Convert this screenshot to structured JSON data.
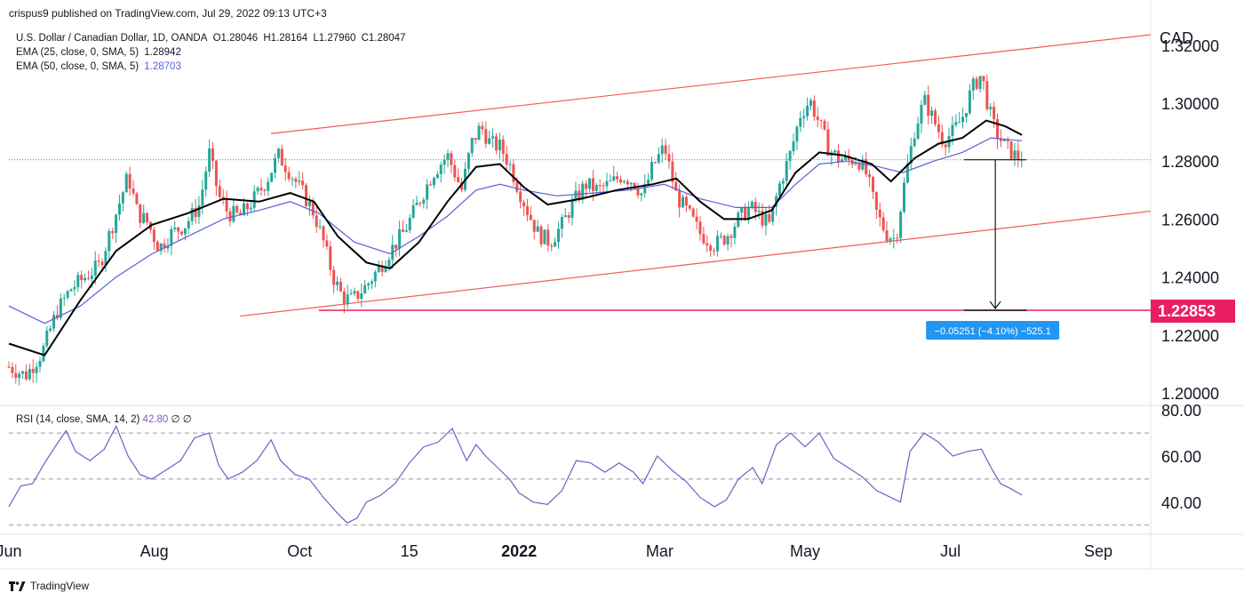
{
  "header": {
    "published": "crispus9 published on TradingView.com, Jul 29, 2022 09:13 UTC+3"
  },
  "legend": {
    "symbol": "U.S. Dollar / Canadian Dollar, 1D, OANDA",
    "open": "O1.28046",
    "high": "H1.28164",
    "low": "L1.27960",
    "close": "C1.28047",
    "ema25_label": "EMA (25, close, 0, SMA, 5)",
    "ema25_value": "1.28942",
    "ema50_label": "EMA (50, close, 0, SMA, 5)",
    "ema50_value": "1.28703"
  },
  "rsi_legend": {
    "label": "RSI (14, close, SMA, 14, 2)",
    "value": "42.80",
    "extra": "∅ ∅"
  },
  "footer": {
    "brand": "TradingView"
  },
  "measure": {
    "text": "−0.05251 (−4.10%) −525.1"
  },
  "chart_data": {
    "type": "candlestick",
    "currency": "CAD",
    "price_ticks": [
      "1.32000",
      "1.30000",
      "1.28000",
      "1.26000",
      "1.24000",
      "1.22000",
      "1.20000"
    ],
    "price_tick_values": [
      1.32,
      1.3,
      1.28,
      1.26,
      1.24,
      1.22,
      1.2
    ],
    "ylim": [
      1.196,
      1.327
    ],
    "current_price": 1.28047,
    "target_level": {
      "value": 1.22853,
      "label": "1.22853"
    },
    "rsi_ticks": [
      "80.00",
      "60.00",
      "40.00"
    ],
    "rsi_tick_values": [
      80,
      60,
      40
    ],
    "rsi_ylim": [
      26,
      82
    ],
    "rsi_levels": [
      70,
      50,
      30
    ],
    "x_labels": [
      "Jun",
      "Aug",
      "Oct",
      "15",
      "2022",
      "Mar",
      "May",
      "Jul",
      "Sep"
    ],
    "x_bold": [
      "2022"
    ],
    "x_label_days": [
      0,
      61,
      122,
      168,
      214,
      273,
      334,
      395,
      457
    ],
    "day_range": [
      0,
      479
    ],
    "channel_upper": [
      [
        110,
        1.2895
      ],
      [
        479,
        1.3236
      ]
    ],
    "channel_lower": [
      [
        97,
        1.2265
      ],
      [
        479,
        1.2627
      ]
    ],
    "price_path": [
      [
        0,
        1.209
      ],
      [
        7,
        1.206
      ],
      [
        14,
        1.214
      ],
      [
        20,
        1.228
      ],
      [
        26,
        1.236
      ],
      [
        32,
        1.24
      ],
      [
        38,
        1.244
      ],
      [
        45,
        1.262
      ],
      [
        50,
        1.275
      ],
      [
        54,
        1.262
      ],
      [
        58,
        1.259
      ],
      [
        63,
        1.25
      ],
      [
        68,
        1.255
      ],
      [
        74,
        1.258
      ],
      [
        80,
        1.265
      ],
      [
        84,
        1.283
      ],
      [
        88,
        1.268
      ],
      [
        92,
        1.262
      ],
      [
        97,
        1.261
      ],
      [
        102,
        1.266
      ],
      [
        108,
        1.273
      ],
      [
        113,
        1.282
      ],
      [
        118,
        1.276
      ],
      [
        124,
        1.268
      ],
      [
        128,
        1.262
      ],
      [
        132,
        1.252
      ],
      [
        136,
        1.24
      ],
      [
        140,
        1.233
      ],
      [
        144,
        1.232
      ],
      [
        150,
        1.237
      ],
      [
        156,
        1.244
      ],
      [
        160,
        1.249
      ],
      [
        166,
        1.256
      ],
      [
        172,
        1.266
      ],
      [
        178,
        1.276
      ],
      [
        184,
        1.282
      ],
      [
        190,
        1.27
      ],
      [
        194,
        1.286
      ],
      [
        198,
        1.292
      ],
      [
        202,
        1.286
      ],
      [
        206,
        1.285
      ],
      [
        210,
        1.279
      ],
      [
        214,
        1.27
      ],
      [
        218,
        1.262
      ],
      [
        222,
        1.255
      ],
      [
        227,
        1.252
      ],
      [
        232,
        1.258
      ],
      [
        237,
        1.266
      ],
      [
        242,
        1.272
      ],
      [
        247,
        1.27
      ],
      [
        252,
        1.272
      ],
      [
        257,
        1.275
      ],
      [
        262,
        1.273
      ],
      [
        266,
        1.268
      ],
      [
        270,
        1.278
      ],
      [
        275,
        1.285
      ],
      [
        280,
        1.268
      ],
      [
        285,
        1.262
      ],
      [
        290,
        1.255
      ],
      [
        296,
        1.251
      ],
      [
        301,
        1.254
      ],
      [
        306,
        1.26
      ],
      [
        311,
        1.264
      ],
      [
        315,
        1.261
      ],
      [
        319,
        1.258
      ],
      [
        323,
        1.271
      ],
      [
        328,
        1.283
      ],
      [
        332,
        1.296
      ],
      [
        336,
        1.301
      ],
      [
        340,
        1.293
      ],
      [
        344,
        1.284
      ],
      [
        348,
        1.281
      ],
      [
        352,
        1.28
      ],
      [
        356,
        1.281
      ],
      [
        360,
        1.275
      ],
      [
        364,
        1.262
      ],
      [
        368,
        1.255
      ],
      [
        372,
        1.253
      ],
      [
        376,
        1.274
      ],
      [
        380,
        1.291
      ],
      [
        384,
        1.301
      ],
      [
        388,
        1.294
      ],
      [
        392,
        1.287
      ],
      [
        396,
        1.29
      ],
      [
        400,
        1.295
      ],
      [
        404,
        1.305
      ],
      [
        408,
        1.31
      ],
      [
        411,
        1.298
      ],
      [
        414,
        1.29
      ],
      [
        418,
        1.285
      ],
      [
        422,
        1.282
      ],
      [
        425,
        1.2805
      ]
    ],
    "ema25": [
      [
        0,
        1.217
      ],
      [
        15,
        1.213
      ],
      [
        30,
        1.232
      ],
      [
        45,
        1.249
      ],
      [
        60,
        1.258
      ],
      [
        75,
        1.262
      ],
      [
        90,
        1.267
      ],
      [
        105,
        1.266
      ],
      [
        118,
        1.269
      ],
      [
        128,
        1.266
      ],
      [
        138,
        1.254
      ],
      [
        150,
        1.245
      ],
      [
        160,
        1.243
      ],
      [
        172,
        1.252
      ],
      [
        184,
        1.266
      ],
      [
        196,
        1.278
      ],
      [
        206,
        1.279
      ],
      [
        216,
        1.271
      ],
      [
        226,
        1.265
      ],
      [
        240,
        1.267
      ],
      [
        255,
        1.27
      ],
      [
        270,
        1.272
      ],
      [
        280,
        1.274
      ],
      [
        290,
        1.266
      ],
      [
        300,
        1.26
      ],
      [
        310,
        1.26
      ],
      [
        320,
        1.263
      ],
      [
        330,
        1.276
      ],
      [
        340,
        1.283
      ],
      [
        350,
        1.282
      ],
      [
        362,
        1.279
      ],
      [
        370,
        1.273
      ],
      [
        380,
        1.281
      ],
      [
        390,
        1.286
      ],
      [
        400,
        1.288
      ],
      [
        410,
        1.294
      ],
      [
        418,
        1.292
      ],
      [
        425,
        1.289
      ]
    ],
    "ema50": [
      [
        0,
        1.23
      ],
      [
        15,
        1.224
      ],
      [
        30,
        1.23
      ],
      [
        45,
        1.24
      ],
      [
        60,
        1.248
      ],
      [
        75,
        1.254
      ],
      [
        90,
        1.26
      ],
      [
        105,
        1.263
      ],
      [
        118,
        1.266
      ],
      [
        130,
        1.262
      ],
      [
        145,
        1.252
      ],
      [
        160,
        1.248
      ],
      [
        172,
        1.254
      ],
      [
        184,
        1.261
      ],
      [
        196,
        1.27
      ],
      [
        206,
        1.272
      ],
      [
        216,
        1.27
      ],
      [
        230,
        1.268
      ],
      [
        245,
        1.269
      ],
      [
        260,
        1.27
      ],
      [
        275,
        1.272
      ],
      [
        290,
        1.267
      ],
      [
        305,
        1.264
      ],
      [
        320,
        1.264
      ],
      [
        330,
        1.272
      ],
      [
        340,
        1.279
      ],
      [
        352,
        1.28
      ],
      [
        365,
        1.278
      ],
      [
        375,
        1.276
      ],
      [
        388,
        1.28
      ],
      [
        400,
        1.283
      ],
      [
        412,
        1.288
      ],
      [
        425,
        1.287
      ]
    ],
    "rsi": [
      [
        0,
        38
      ],
      [
        5,
        47
      ],
      [
        10,
        48
      ],
      [
        15,
        57
      ],
      [
        20,
        65
      ],
      [
        24,
        71
      ],
      [
        28,
        62
      ],
      [
        34,
        58
      ],
      [
        40,
        63
      ],
      [
        45,
        73
      ],
      [
        50,
        60
      ],
      [
        55,
        52
      ],
      [
        60,
        50
      ],
      [
        66,
        54
      ],
      [
        72,
        58
      ],
      [
        78,
        68
      ],
      [
        84,
        70
      ],
      [
        88,
        56
      ],
      [
        92,
        50
      ],
      [
        98,
        53
      ],
      [
        104,
        58
      ],
      [
        110,
        67
      ],
      [
        114,
        58
      ],
      [
        120,
        52
      ],
      [
        126,
        50
      ],
      [
        132,
        42
      ],
      [
        138,
        35
      ],
      [
        142,
        31
      ],
      [
        146,
        33
      ],
      [
        150,
        40
      ],
      [
        156,
        43
      ],
      [
        162,
        48
      ],
      [
        168,
        57
      ],
      [
        174,
        64
      ],
      [
        180,
        66
      ],
      [
        186,
        72
      ],
      [
        192,
        58
      ],
      [
        196,
        65
      ],
      [
        200,
        60
      ],
      [
        206,
        54
      ],
      [
        210,
        50
      ],
      [
        214,
        44
      ],
      [
        220,
        40
      ],
      [
        226,
        39
      ],
      [
        232,
        45
      ],
      [
        238,
        58
      ],
      [
        244,
        57
      ],
      [
        250,
        53
      ],
      [
        256,
        57
      ],
      [
        262,
        53
      ],
      [
        266,
        48
      ],
      [
        272,
        60
      ],
      [
        278,
        54
      ],
      [
        284,
        49
      ],
      [
        290,
        42
      ],
      [
        296,
        38
      ],
      [
        301,
        41
      ],
      [
        306,
        50
      ],
      [
        312,
        55
      ],
      [
        316,
        48
      ],
      [
        322,
        65
      ],
      [
        328,
        70
      ],
      [
        334,
        64
      ],
      [
        340,
        70
      ],
      [
        346,
        59
      ],
      [
        352,
        55
      ],
      [
        358,
        51
      ],
      [
        364,
        45
      ],
      [
        370,
        42
      ],
      [
        374,
        40
      ],
      [
        378,
        62
      ],
      [
        384,
        70
      ],
      [
        390,
        66
      ],
      [
        396,
        60
      ],
      [
        402,
        62
      ],
      [
        408,
        63
      ],
      [
        412,
        55
      ],
      [
        416,
        48
      ],
      [
        420,
        46
      ],
      [
        425,
        43
      ]
    ]
  }
}
